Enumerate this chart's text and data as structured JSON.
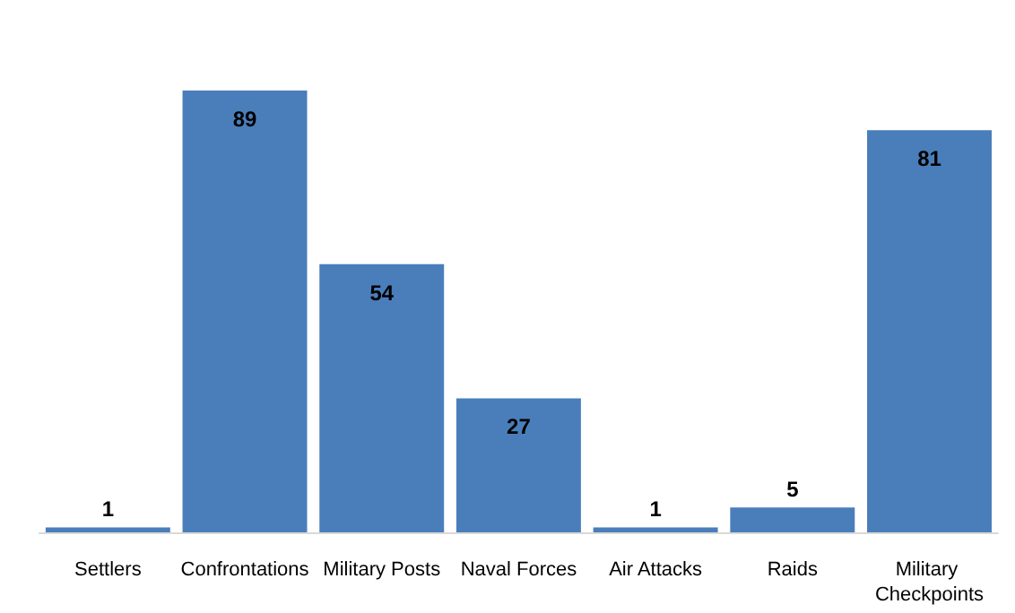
{
  "chart_data": {
    "type": "bar",
    "categories": [
      "Settlers",
      "Confrontations",
      "Military Posts",
      "Naval Forces",
      "Air Attacks",
      "Raids",
      "Military Checkpoints"
    ],
    "values": [
      1,
      89,
      54,
      27,
      1,
      5,
      81
    ],
    "color": "#4a7ebb",
    "data_labels": true
  }
}
